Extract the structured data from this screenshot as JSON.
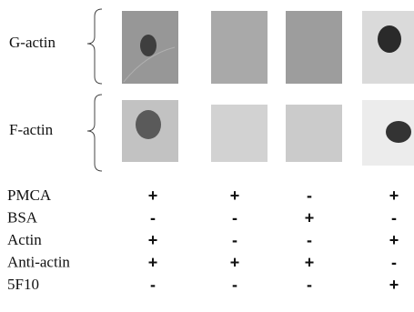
{
  "blot_rows": [
    {
      "label": "G-actin"
    },
    {
      "label": "F-actin"
    }
  ],
  "conditions": {
    "rows": [
      {
        "label": "PMCA",
        "values": [
          "+",
          "+",
          "-",
          "+"
        ]
      },
      {
        "label": "BSA",
        "values": [
          "-",
          "-",
          "+",
          "-"
        ]
      },
      {
        "label": "Actin",
        "values": [
          "+",
          "-",
          "-",
          "+"
        ]
      },
      {
        "label": "Anti-actin",
        "values": [
          "+",
          "+",
          "+",
          "-"
        ]
      },
      {
        "label": "5F10",
        "values": [
          "-",
          "-",
          "-",
          "+"
        ]
      }
    ]
  }
}
